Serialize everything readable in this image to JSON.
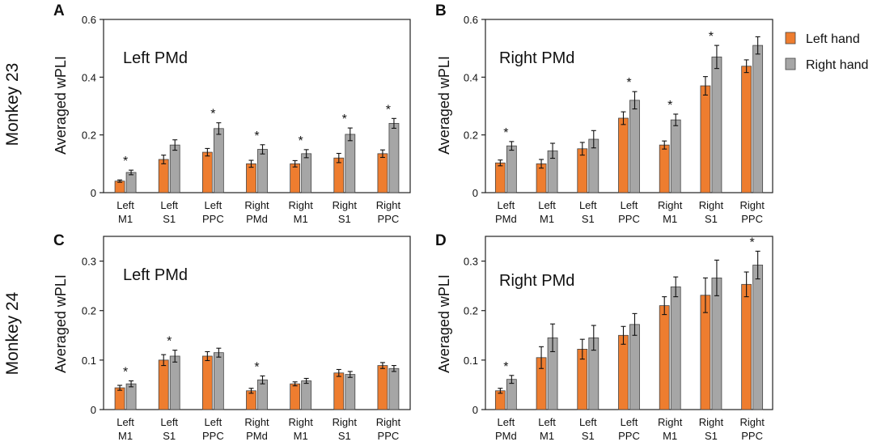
{
  "row_labels": [
    "Monkey 23",
    "Monkey 24"
  ],
  "legend": [
    {
      "label": "Left hand",
      "color": "#EE7D2F"
    },
    {
      "label": "Right hand",
      "color": "#A6A6A6"
    }
  ],
  "colors": {
    "left": "#EE7D2F",
    "right": "#A6A6A6",
    "edge": "#444444",
    "axis": "#222222"
  },
  "chart_data": [
    {
      "panel": "A",
      "type": "bar",
      "title": "Left PMd",
      "ylabel": "Averaged wPLI",
      "ylim": [
        0,
        0.6
      ],
      "yticks": [
        "0",
        "0.2",
        "0.4",
        "0.6"
      ],
      "ytick_values": [
        0,
        0.2,
        0.4,
        0.6
      ],
      "categories": [
        [
          "Left",
          "M1"
        ],
        [
          "Left",
          "S1"
        ],
        [
          "Left",
          "PPC"
        ],
        [
          "Right",
          "PMd"
        ],
        [
          "Right",
          "M1"
        ],
        [
          "Right",
          "S1"
        ],
        [
          "Right",
          "PPC"
        ]
      ],
      "series": [
        {
          "name": "Left hand",
          "values": [
            0.04,
            0.115,
            0.14,
            0.1,
            0.1,
            0.12,
            0.135
          ],
          "errors": [
            0.004,
            0.015,
            0.013,
            0.012,
            0.011,
            0.016,
            0.013
          ]
        },
        {
          "name": "Right hand",
          "values": [
            0.07,
            0.165,
            0.222,
            0.15,
            0.135,
            0.202,
            0.24
          ],
          "errors": [
            0.008,
            0.018,
            0.02,
            0.016,
            0.014,
            0.022,
            0.017
          ]
        }
      ],
      "significance": [
        true,
        false,
        true,
        true,
        true,
        true,
        true
      ]
    },
    {
      "panel": "B",
      "type": "bar",
      "title": "Right PMd",
      "ylabel": "Averaged wPLI",
      "ylim": [
        0,
        0.6
      ],
      "yticks": [
        "0",
        "0.2",
        "0.4",
        "0.6"
      ],
      "ytick_values": [
        0,
        0.2,
        0.4,
        0.6
      ],
      "categories": [
        [
          "Left",
          "PMd"
        ],
        [
          "Left",
          "M1"
        ],
        [
          "Left",
          "S1"
        ],
        [
          "Left",
          "PPC"
        ],
        [
          "Right",
          "M1"
        ],
        [
          "Right",
          "S1"
        ],
        [
          "Right",
          "PPC"
        ]
      ],
      "series": [
        {
          "name": "Left hand",
          "values": [
            0.103,
            0.1,
            0.152,
            0.258,
            0.165,
            0.37,
            0.438
          ],
          "errors": [
            0.01,
            0.015,
            0.022,
            0.022,
            0.014,
            0.032,
            0.022
          ]
        },
        {
          "name": "Right hand",
          "values": [
            0.162,
            0.145,
            0.185,
            0.32,
            0.252,
            0.47,
            0.51
          ],
          "errors": [
            0.015,
            0.026,
            0.03,
            0.03,
            0.02,
            0.04,
            0.03
          ]
        }
      ],
      "significance": [
        true,
        false,
        false,
        true,
        true,
        true,
        false
      ]
    },
    {
      "panel": "C",
      "type": "bar",
      "title": "Left PMd",
      "ylabel": "Averaged wPLI",
      "ylim": [
        0,
        0.35
      ],
      "yticks": [
        "0",
        "0.1",
        "0.2",
        "0.3"
      ],
      "ytick_values": [
        0,
        0.1,
        0.2,
        0.3
      ],
      "categories": [
        [
          "Left",
          "M1"
        ],
        [
          "Left",
          "S1"
        ],
        [
          "Left",
          "PPC"
        ],
        [
          "Right",
          "PMd"
        ],
        [
          "Right",
          "M1"
        ],
        [
          "Right",
          "S1"
        ],
        [
          "Right",
          "PPC"
        ]
      ],
      "series": [
        {
          "name": "Left hand",
          "values": [
            0.044,
            0.1,
            0.108,
            0.038,
            0.052,
            0.074,
            0.089
          ],
          "errors": [
            0.005,
            0.011,
            0.009,
            0.005,
            0.004,
            0.007,
            0.006
          ]
        },
        {
          "name": "Right hand",
          "values": [
            0.052,
            0.108,
            0.115,
            0.06,
            0.058,
            0.071,
            0.083
          ],
          "errors": [
            0.006,
            0.012,
            0.009,
            0.008,
            0.005,
            0.006,
            0.006
          ]
        }
      ],
      "significance": [
        true,
        true,
        false,
        true,
        false,
        false,
        false
      ]
    },
    {
      "panel": "D",
      "type": "bar",
      "title": "Right PMd",
      "ylabel": "Averaged wPLI",
      "ylim": [
        0,
        0.35
      ],
      "yticks": [
        "0",
        "0.1",
        "0.2",
        "0.3"
      ],
      "ytick_values": [
        0,
        0.1,
        0.2,
        0.3
      ],
      "categories": [
        [
          "Left",
          "PMd"
        ],
        [
          "Left",
          "M1"
        ],
        [
          "Left",
          "S1"
        ],
        [
          "Left",
          "PPC"
        ],
        [
          "Right",
          "M1"
        ],
        [
          "Right",
          "S1"
        ],
        [
          "Right",
          "PPC"
        ]
      ],
      "series": [
        {
          "name": "Left hand",
          "values": [
            0.038,
            0.105,
            0.122,
            0.15,
            0.21,
            0.231,
            0.253
          ],
          "errors": [
            0.005,
            0.022,
            0.02,
            0.018,
            0.018,
            0.035,
            0.025
          ]
        },
        {
          "name": "Right hand",
          "values": [
            0.061,
            0.145,
            0.145,
            0.172,
            0.248,
            0.266,
            0.292
          ],
          "errors": [
            0.008,
            0.028,
            0.025,
            0.022,
            0.02,
            0.036,
            0.028
          ]
        }
      ],
      "significance": [
        true,
        false,
        false,
        false,
        false,
        false,
        true
      ]
    }
  ]
}
